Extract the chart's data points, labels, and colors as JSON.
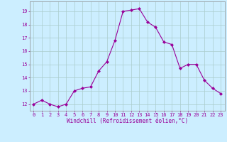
{
  "x": [
    0,
    1,
    2,
    3,
    4,
    5,
    6,
    7,
    8,
    9,
    10,
    11,
    12,
    13,
    14,
    15,
    16,
    17,
    18,
    19,
    20,
    21,
    22,
    23
  ],
  "y": [
    12.0,
    12.3,
    12.0,
    11.8,
    12.0,
    13.0,
    13.2,
    13.3,
    14.5,
    15.2,
    16.8,
    19.0,
    19.1,
    19.2,
    18.2,
    17.8,
    16.7,
    16.5,
    14.7,
    15.0,
    15.0,
    13.8,
    13.2,
    12.8
  ],
  "line_color": "#990099",
  "marker": "D",
  "marker_size": 2.0,
  "bg_color": "#cceeff",
  "grid_color": "#aacccc",
  "xlabel": "Windchill (Refroidissement éolien,°C)",
  "xlabel_color": "#990099",
  "tick_color": "#990099",
  "ylim": [
    11.5,
    19.75
  ],
  "xlim": [
    -0.5,
    23.5
  ],
  "yticks": [
    12,
    13,
    14,
    15,
    16,
    17,
    18,
    19
  ],
  "xticks": [
    0,
    1,
    2,
    3,
    4,
    5,
    6,
    7,
    8,
    9,
    10,
    11,
    12,
    13,
    14,
    15,
    16,
    17,
    18,
    19,
    20,
    21,
    22,
    23
  ],
  "spine_color": "#888888",
  "tick_fontsize": 5.0,
  "xlabel_fontsize": 5.5,
  "linewidth": 0.8
}
